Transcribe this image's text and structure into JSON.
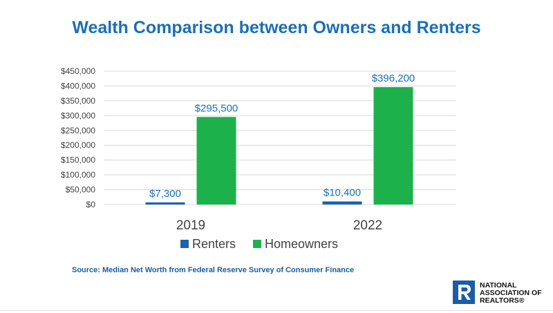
{
  "page": {
    "source_note": "Source: Median Net Worth from Federal Reserve Survey of Consumer Finance",
    "logo": {
      "line1": "NATIONAL",
      "line2": "ASSOCIATION OF",
      "line3": "REALTORS®"
    }
  },
  "colors": {
    "title": "#1a6fb5",
    "renters": "#1c62ae",
    "homeowners": "#1db14b",
    "label": "#1a6fb5",
    "grid": "#d9d9d9",
    "axis_text": "#404040",
    "logo_blue": "#1a5da6"
  },
  "chart_data": {
    "type": "bar",
    "title": "Wealth Comparison between Owners and Renters",
    "categories": [
      "2019",
      "2022"
    ],
    "series": [
      {
        "name": "Renters",
        "values": [
          7300,
          10400
        ],
        "labels": [
          "$7,300",
          "$10,400"
        ]
      },
      {
        "name": "Homeowners",
        "values": [
          295500,
          396200
        ],
        "labels": [
          "$295,500",
          "$396,200"
        ]
      }
    ],
    "ylim": [
      0,
      450000
    ],
    "yticks": [
      0,
      50000,
      100000,
      150000,
      200000,
      250000,
      300000,
      350000,
      400000,
      450000
    ],
    "ytick_labels": [
      "$0",
      "$50,000",
      "$100,000",
      "$150,000",
      "$200,000",
      "$250,000",
      "$300,000",
      "$350,000",
      "$400,000",
      "$450,000"
    ],
    "grid": true,
    "legend": "bottom-center"
  }
}
